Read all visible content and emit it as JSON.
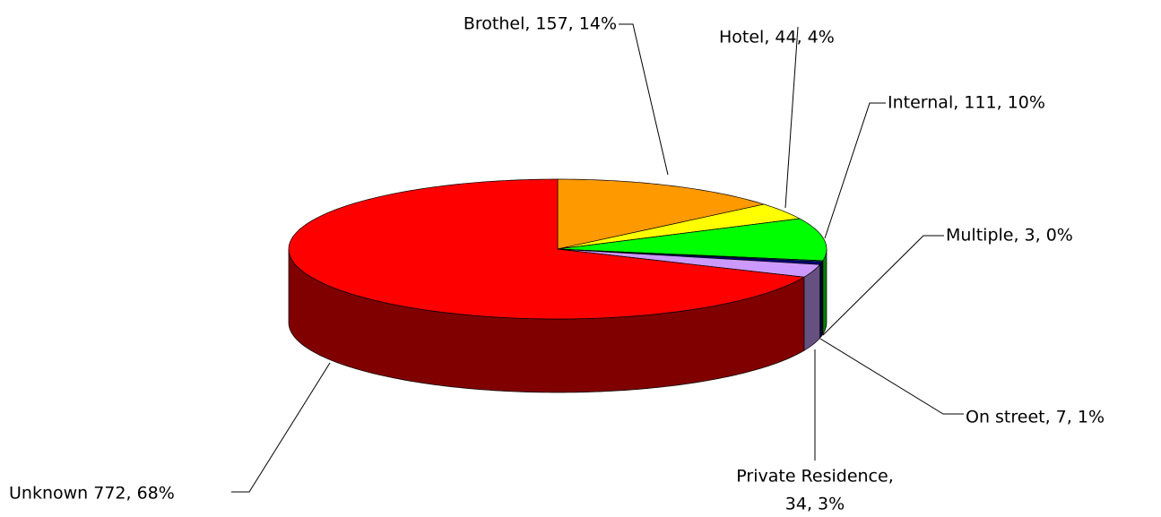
{
  "chart_data": {
    "type": "pie3d",
    "values": [
      157,
      44,
      111,
      3,
      7,
      34,
      772
    ],
    "value_labels": [
      "Brothel, 157, 14%",
      "Hotel, 44, 4%",
      "Internal, 111, 10%",
      "Multiple, 3, 0%",
      "On street, 7, 1%",
      [
        "Private Residence,",
        "34, 3%"
      ],
      "Unknown 772, 68%"
    ],
    "colors": [
      "#ff9900",
      "#ffff00",
      "#00ff00",
      "#008080",
      "#000080",
      "#cc99ff",
      "#ff0000"
    ],
    "side_colors": [
      "#804c00",
      "#808000",
      "#008000",
      "#004040",
      "#000040",
      "#665080",
      "#800000"
    ]
  }
}
